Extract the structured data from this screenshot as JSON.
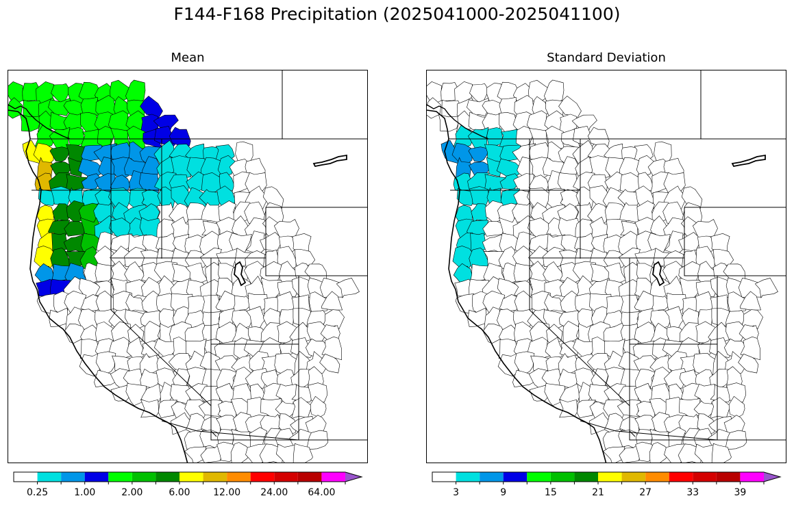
{
  "figure": {
    "title": "F144-F168 Precipitation (2025041000-2025041100)"
  },
  "panels": [
    {
      "id": "mean",
      "title": "Mean",
      "colorbar": {
        "colors": [
          "#ffffff",
          "#00e0e0",
          "#0096e8",
          "#0000e6",
          "#00ff00",
          "#00c000",
          "#008800",
          "#ffff00",
          "#e0b800",
          "#ff8c00",
          "#ff0000",
          "#d40000",
          "#b80000",
          "#ff00ff",
          "#9955cc"
        ],
        "tick_labels": [
          "0.25",
          "1.00",
          "2.00",
          "6.00",
          "12.00",
          "24.00",
          "64.00"
        ],
        "extend": "max"
      },
      "regions": [
        {
          "name": "wa-coast-south",
          "color": "#e0b800"
        },
        {
          "name": "wa-olympic",
          "color": "#ffff00"
        },
        {
          "name": "or-coast",
          "color": "#ffff00"
        },
        {
          "name": "wa-cascades",
          "color": "#008800"
        },
        {
          "name": "or-cascades",
          "color": "#008800"
        },
        {
          "name": "or-west-valley",
          "color": "#00c000"
        },
        {
          "name": "bc-north",
          "color": "#00ff00"
        },
        {
          "name": "bc-columbia",
          "color": "#0000e6"
        },
        {
          "name": "id-north",
          "color": "#0096e8"
        },
        {
          "name": "id-mt-east",
          "color": "#00e0e0"
        },
        {
          "name": "or-east",
          "color": "#00e0e0"
        },
        {
          "name": "ca-north-coast",
          "color": "#0000e6"
        },
        {
          "name": "or-south-inland",
          "color": "#0096e8"
        }
      ]
    },
    {
      "id": "stddev",
      "title": "Standard Deviation",
      "colorbar": {
        "colors": [
          "#ffffff",
          "#00e0e0",
          "#0096e8",
          "#0000e6",
          "#00ff00",
          "#00c000",
          "#008800",
          "#ffff00",
          "#e0b800",
          "#ff8c00",
          "#ff0000",
          "#d40000",
          "#b80000",
          "#ff00ff",
          "#9955cc"
        ],
        "tick_labels": [
          "3",
          "9",
          "15",
          "21",
          "27",
          "33",
          "39"
        ],
        "extend": "max"
      },
      "regions": [
        {
          "name": "wa-coast",
          "color": "#0096e8"
        },
        {
          "name": "wa-interior",
          "color": "#00e0e0"
        },
        {
          "name": "or-west",
          "color": "#00e0e0"
        },
        {
          "name": "ca-north-coast",
          "color": "#00e0e0"
        }
      ]
    }
  ]
}
